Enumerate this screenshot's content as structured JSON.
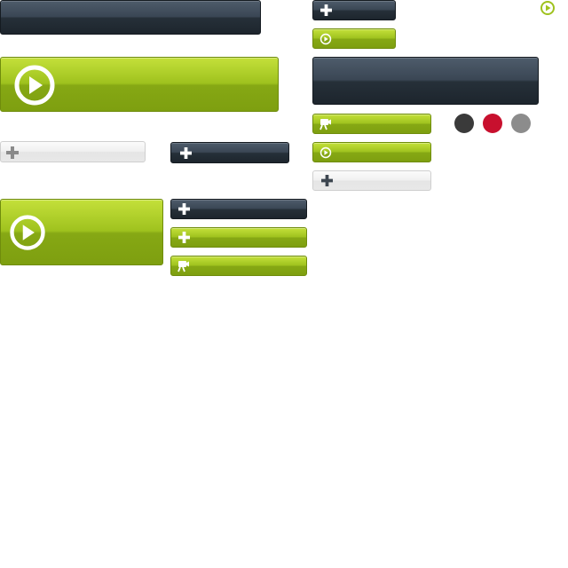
{
  "sheet": {
    "background": "#ffffff",
    "dark_color": "#1d252d",
    "green_color": "#9fc21e",
    "light_color": "#eeeeee",
    "swatches": [
      {
        "name": "dark-gray",
        "color": "#3a3a3a"
      },
      {
        "name": "red",
        "color": "#c8102e"
      },
      {
        "name": "gray",
        "color": "#8c8c8c"
      }
    ],
    "icons": [
      "plus-icon",
      "play-icon",
      "camera-icon"
    ]
  }
}
